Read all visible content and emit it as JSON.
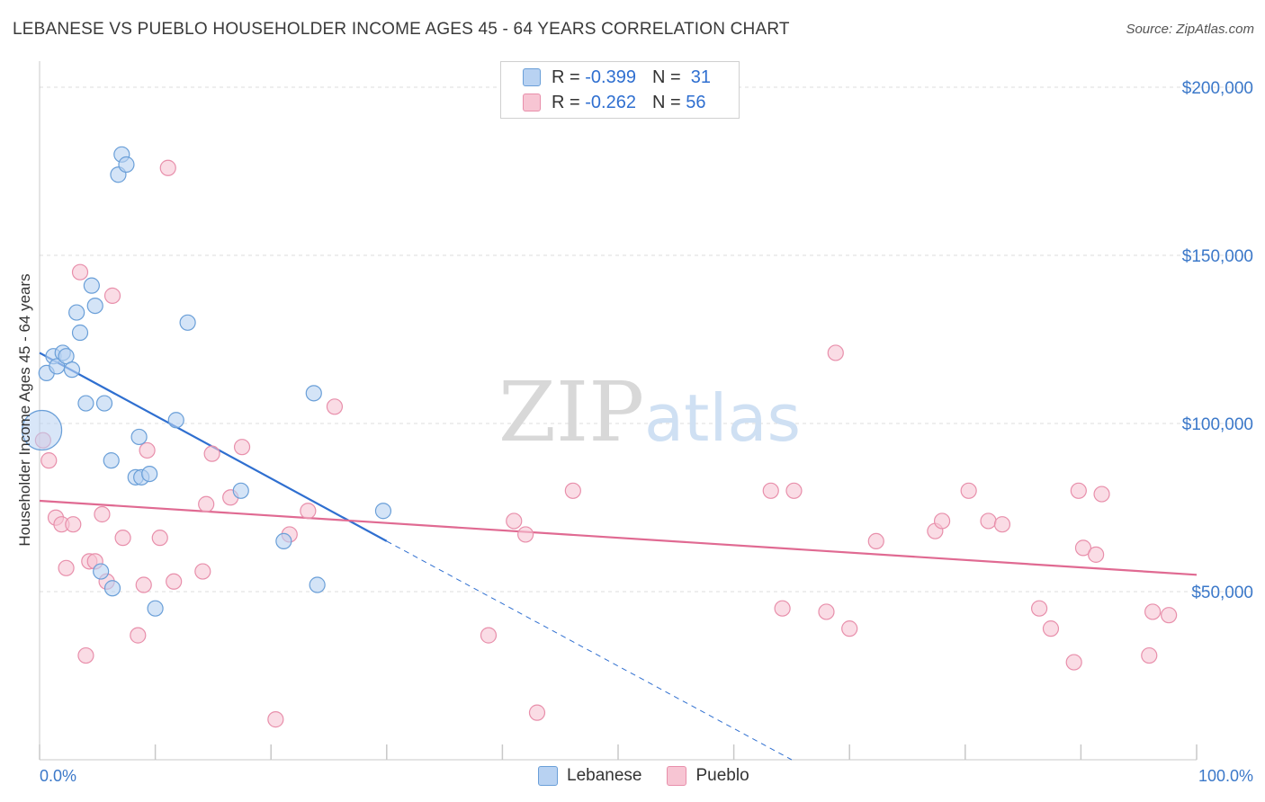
{
  "header": {
    "title": "LEBANESE VS PUEBLO HOUSEHOLDER INCOME AGES 45 - 64 YEARS CORRELATION CHART",
    "source": "Source: ZipAtlas.com"
  },
  "legend": {
    "rows": [
      {
        "r_label": "R =",
        "r_value": "-0.399",
        "n_label": "N =",
        "n_value": "31"
      },
      {
        "r_label": "R =",
        "r_value": "-0.262",
        "n_label": "N =",
        "n_value": "56"
      }
    ],
    "bottom": [
      "Lebanese",
      "Pueblo"
    ]
  },
  "watermark": {
    "zip": "ZIP",
    "atlas": "atlas"
  },
  "colors": {
    "lebanese_fill": "#b8d2f2",
    "lebanese_stroke": "#6a9fd8",
    "lebanese_line": "#2f6fd0",
    "pueblo_fill": "#f7c5d3",
    "pueblo_stroke": "#e88fab",
    "pueblo_line": "#e06a92",
    "tick_text": "#3b78c9",
    "grid": "#dcdcdc"
  },
  "chart_data": {
    "type": "scatter",
    "title": "LEBANESE VS PUEBLO HOUSEHOLDER INCOME AGES 45 - 64 YEARS CORRELATION CHART",
    "xlabel": "",
    "ylabel": "Householder Income Ages 45 - 64 years",
    "xlim": [
      0,
      100
    ],
    "ylim": [
      0,
      200000
    ],
    "x_tick_labels": [
      "0.0%",
      "100.0%"
    ],
    "y_ticks": [
      50000,
      100000,
      150000,
      200000
    ],
    "y_tick_labels": [
      "$50,000",
      "$100,000",
      "$150,000",
      "$200,000"
    ],
    "grid": true,
    "series": [
      {
        "name": "Lebanese",
        "R": -0.399,
        "N": 31,
        "points": [
          [
            0.2,
            98000
          ],
          [
            0.6,
            115000
          ],
          [
            1.2,
            120000
          ],
          [
            1.5,
            117000
          ],
          [
            2.0,
            121000
          ],
          [
            2.3,
            120000
          ],
          [
            2.8,
            116000
          ],
          [
            3.2,
            133000
          ],
          [
            3.5,
            127000
          ],
          [
            4.0,
            106000
          ],
          [
            4.5,
            141000
          ],
          [
            4.8,
            135000
          ],
          [
            5.3,
            56000
          ],
          [
            5.6,
            106000
          ],
          [
            6.3,
            51000
          ],
          [
            6.2,
            89000
          ],
          [
            6.8,
            174000
          ],
          [
            7.1,
            180000
          ],
          [
            7.5,
            177000
          ],
          [
            8.3,
            84000
          ],
          [
            8.6,
            96000
          ],
          [
            8.8,
            84000
          ],
          [
            9.5,
            85000
          ],
          [
            10.0,
            45000
          ],
          [
            11.8,
            101000
          ],
          [
            12.8,
            130000
          ],
          [
            17.4,
            80000
          ],
          [
            21.1,
            65000
          ],
          [
            23.7,
            109000
          ],
          [
            24.0,
            52000
          ],
          [
            29.7,
            74000
          ]
        ],
        "trend": {
          "x": [
            0,
            30
          ],
          "y": [
            121000,
            65000
          ],
          "dashed_to": [
            65,
            0
          ]
        }
      },
      {
        "name": "Pueblo",
        "R": -0.262,
        "N": 56,
        "points": [
          [
            0.3,
            95000
          ],
          [
            0.8,
            89000
          ],
          [
            1.4,
            72000
          ],
          [
            1.9,
            70000
          ],
          [
            2.3,
            57000
          ],
          [
            2.9,
            70000
          ],
          [
            3.5,
            145000
          ],
          [
            4.0,
            31000
          ],
          [
            4.3,
            59000
          ],
          [
            4.8,
            59000
          ],
          [
            5.4,
            73000
          ],
          [
            5.8,
            53000
          ],
          [
            6.3,
            138000
          ],
          [
            7.2,
            66000
          ],
          [
            8.5,
            37000
          ],
          [
            9.0,
            52000
          ],
          [
            9.3,
            92000
          ],
          [
            10.4,
            66000
          ],
          [
            11.1,
            176000
          ],
          [
            11.6,
            53000
          ],
          [
            14.1,
            56000
          ],
          [
            14.4,
            76000
          ],
          [
            14.9,
            91000
          ],
          [
            16.5,
            78000
          ],
          [
            17.5,
            93000
          ],
          [
            20.4,
            12000
          ],
          [
            21.6,
            67000
          ],
          [
            23.2,
            74000
          ],
          [
            25.5,
            105000
          ],
          [
            38.8,
            37000
          ],
          [
            41.0,
            71000
          ],
          [
            42.0,
            67000
          ],
          [
            43.0,
            14000
          ],
          [
            46.1,
            80000
          ],
          [
            63.2,
            80000
          ],
          [
            64.2,
            45000
          ],
          [
            65.2,
            80000
          ],
          [
            68.0,
            44000
          ],
          [
            68.8,
            121000
          ],
          [
            70.0,
            39000
          ],
          [
            72.3,
            65000
          ],
          [
            77.4,
            68000
          ],
          [
            78.0,
            71000
          ],
          [
            80.3,
            80000
          ],
          [
            82.0,
            71000
          ],
          [
            83.2,
            70000
          ],
          [
            86.4,
            45000
          ],
          [
            87.4,
            39000
          ],
          [
            89.4,
            29000
          ],
          [
            89.8,
            80000
          ],
          [
            90.2,
            63000
          ],
          [
            91.3,
            61000
          ],
          [
            91.8,
            79000
          ],
          [
            95.9,
            31000
          ],
          [
            96.2,
            44000
          ],
          [
            97.6,
            43000
          ]
        ],
        "trend": {
          "x": [
            0,
            100
          ],
          "y": [
            77000,
            55000
          ]
        }
      }
    ]
  }
}
